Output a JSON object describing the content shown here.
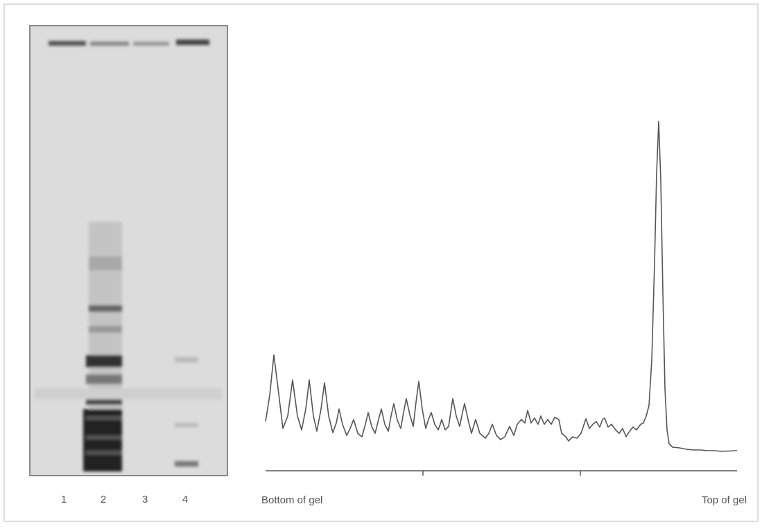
{
  "figure": {
    "lanes": [
      "1",
      "2",
      "3",
      "4"
    ],
    "trace_labels": {
      "left": "Bottom of gel",
      "right": "Top of gel"
    }
  }
}
